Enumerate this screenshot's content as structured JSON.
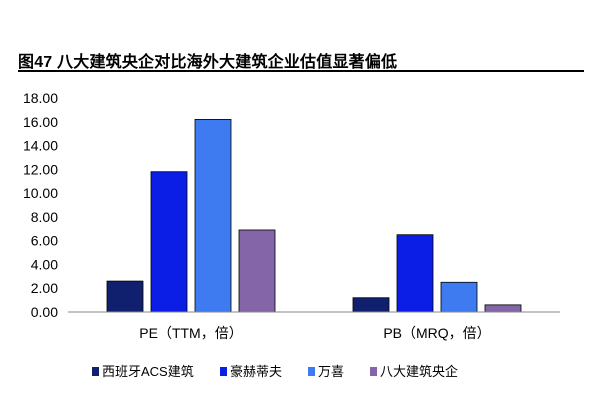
{
  "figure": {
    "title": "图47 八大建筑央企对比海外大建筑企业估值显著偏低"
  },
  "chart_data": {
    "type": "bar",
    "title": "图47 八大建筑央企对比海外大建筑企业估值显著偏低",
    "xlabel": "",
    "ylabel": "",
    "categories": [
      "PE（TTM，倍）",
      "PB（MRQ，倍）"
    ],
    "ylim": [
      0,
      18
    ],
    "yticks": [
      0,
      2,
      4,
      6,
      8,
      10,
      12,
      14,
      16,
      18
    ],
    "ytick_labels": [
      "0.00",
      "2.00",
      "4.00",
      "6.00",
      "8.00",
      "10.00",
      "12.00",
      "14.00",
      "16.00",
      "18.00"
    ],
    "grid": false,
    "legend_position": "bottom",
    "series": [
      {
        "name": "西班牙ACS建筑",
        "color": "#10206e",
        "values": [
          2.6,
          1.2
        ]
      },
      {
        "name": "豪赫蒂夫",
        "color": "#0a1ee6",
        "values": [
          11.8,
          6.5
        ]
      },
      {
        "name": "万喜",
        "color": "#3f7bf0",
        "values": [
          16.2,
          2.5
        ]
      },
      {
        "name": "八大建筑央企",
        "color": "#8365a8",
        "values": [
          6.9,
          0.6
        ]
      }
    ]
  }
}
